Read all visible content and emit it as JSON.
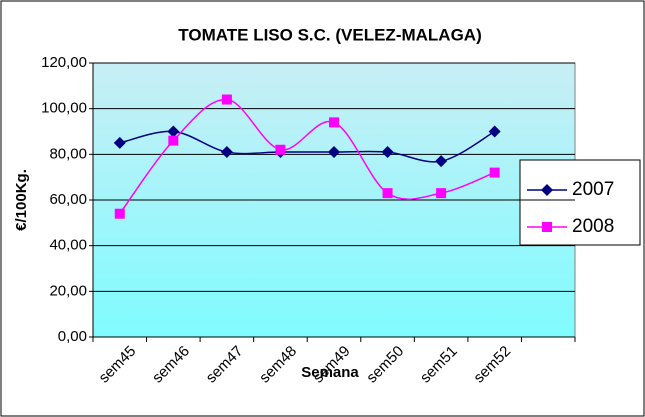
{
  "chart_data": {
    "type": "line",
    "title": "TOMATE LISO S.C. (VELEZ-MALAGA)",
    "x_label": "Semana",
    "y_label": "€/100Kg.",
    "categories": [
      "sem45",
      "sem46",
      "sem47",
      "sem48",
      "sem49",
      "sem50",
      "sem51",
      "sem52",
      null
    ],
    "series": [
      {
        "name": "2007",
        "color": "#000080",
        "marker": "diamond",
        "values": [
          85,
          90,
          81,
          81,
          81,
          81,
          77,
          90,
          null
        ]
      },
      {
        "name": "2008",
        "color": "#ff00ff",
        "marker": "square",
        "values": [
          54,
          86,
          104,
          82,
          94,
          63,
          63,
          72,
          null
        ]
      }
    ],
    "ylim": [
      0,
      120
    ],
    "yticks": [
      {
        "value": 0,
        "label": "0,00"
      },
      {
        "value": 20,
        "label": "20,00"
      },
      {
        "value": 40,
        "label": "40,00"
      },
      {
        "value": 60,
        "label": "60,00"
      },
      {
        "value": 80,
        "label": "80,00"
      },
      {
        "value": 100,
        "label": "100,00"
      },
      {
        "value": 120,
        "label": "120,00"
      }
    ],
    "grid": true,
    "smooth": true,
    "legend": "right"
  }
}
